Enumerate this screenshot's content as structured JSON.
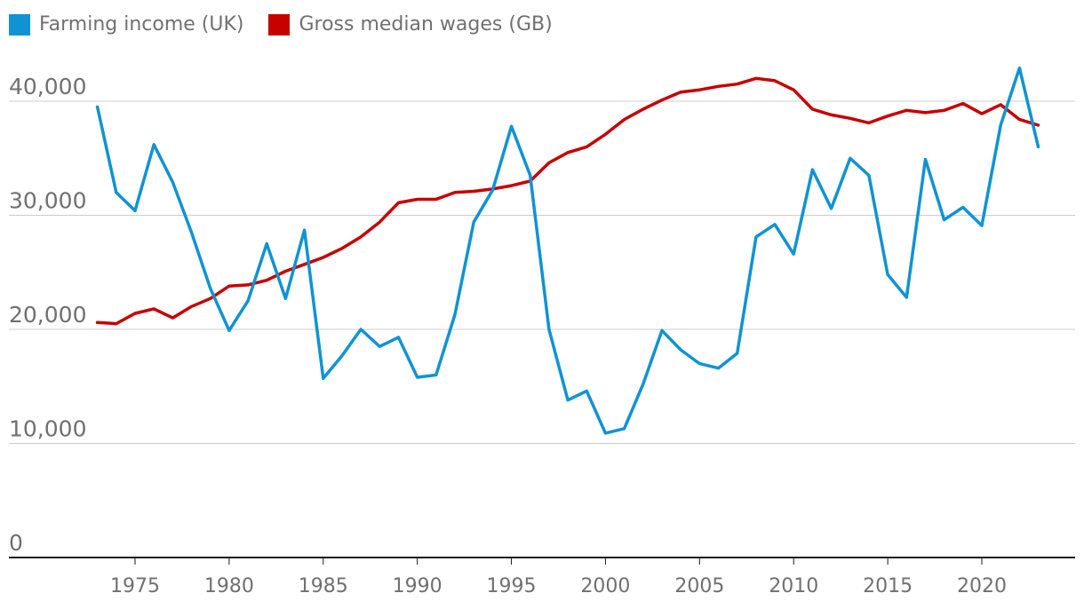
{
  "chart_data": {
    "type": "line",
    "title": "",
    "xlabel": "",
    "ylabel": "",
    "ylim": [
      0,
      45000
    ],
    "xlim": [
      1969,
      2025
    ],
    "grid": true,
    "legend_position": "top-left",
    "yticks": [
      0,
      10000,
      20000,
      30000,
      40000
    ],
    "ytick_labels": [
      "0",
      "10,000",
      "20,000",
      "30,000",
      "40,000"
    ],
    "xticks": [
      1975,
      1980,
      1985,
      1990,
      1995,
      2000,
      2005,
      2010,
      2015,
      2020
    ],
    "xtick_labels": [
      "1975",
      "1980",
      "1985",
      "1990",
      "1995",
      "2000",
      "2005",
      "2010",
      "2015",
      "2020"
    ],
    "x": [
      1973,
      1974,
      1975,
      1976,
      1977,
      1978,
      1979,
      1980,
      1981,
      1982,
      1983,
      1984,
      1985,
      1986,
      1987,
      1988,
      1989,
      1990,
      1991,
      1992,
      1993,
      1994,
      1995,
      1996,
      1997,
      1998,
      1999,
      2000,
      2001,
      2002,
      2003,
      2004,
      2005,
      2006,
      2007,
      2008,
      2009,
      2010,
      2011,
      2012,
      2013,
      2014,
      2015,
      2016,
      2017,
      2018,
      2019,
      2020,
      2021,
      2022,
      2023
    ],
    "series": [
      {
        "name": "Farming income (UK)",
        "color": "#0f93d4",
        "values": [
          39500,
          32000,
          30400,
          36200,
          32900,
          28500,
          23600,
          19900,
          22500,
          27500,
          22700,
          28700,
          15700,
          17700,
          20000,
          18500,
          19300,
          15800,
          16000,
          21300,
          29400,
          32200,
          37800,
          33500,
          20000,
          13800,
          14600,
          10900,
          11300,
          15200,
          19900,
          18200,
          17000,
          16600,
          17900,
          28100,
          29200,
          26600,
          34000,
          30600,
          35000,
          33500,
          24800,
          22800,
          34900,
          29600,
          30700,
          29100,
          37900,
          42900,
          36000
        ]
      },
      {
        "name": "Gross median wages (GB)",
        "color": "#c70000",
        "values": [
          20600,
          20500,
          21400,
          21800,
          21000,
          22000,
          22700,
          23800,
          23900,
          24300,
          25100,
          25700,
          26300,
          27100,
          28100,
          29400,
          31100,
          31400,
          31400,
          32000,
          32100,
          32300,
          32600,
          33000,
          34600,
          35500,
          36000,
          37100,
          38400,
          39300,
          40100,
          40800,
          41000,
          41300,
          41500,
          42000,
          41800,
          41000,
          39300,
          38800,
          38500,
          38100,
          38700,
          39200,
          39000,
          39200,
          39800,
          38900,
          39700,
          38400,
          37900
        ]
      }
    ]
  }
}
